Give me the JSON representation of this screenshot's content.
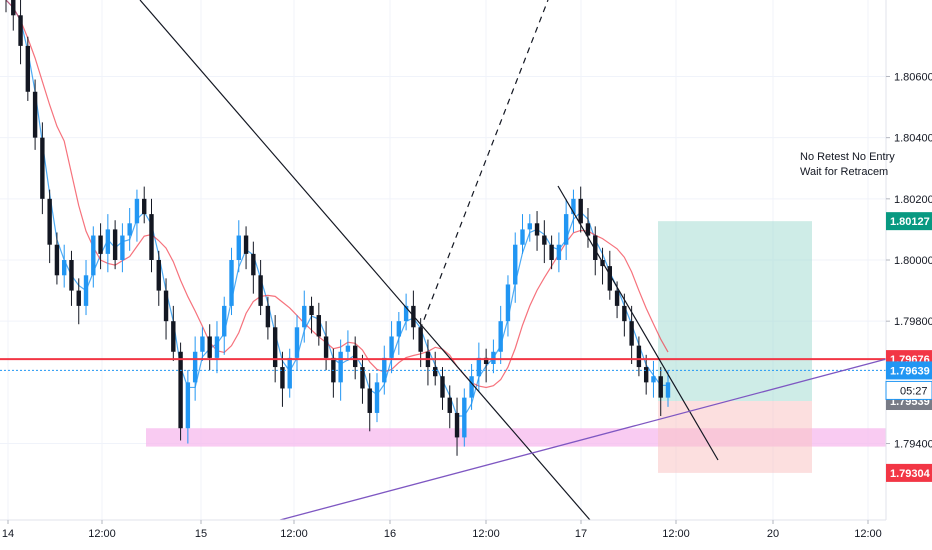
{
  "chart_data": {
    "type": "candlestick",
    "instrument_price_axis": {
      "ylim": [
        1.7915,
        1.8085
      ],
      "tick_values": [
        1.806,
        1.804,
        1.802,
        1.8,
        1.798,
        1.794
      ],
      "tick_labels": [
        "1.80600",
        "1.80400",
        "1.80200",
        "1.80000",
        "1.79800",
        "1.79400"
      ]
    },
    "time_axis": {
      "labels": [
        "14",
        "12:00",
        "15",
        "12:00",
        "16",
        "12:00",
        "17",
        "12:00",
        "20",
        "12:00"
      ]
    },
    "price_badges": [
      {
        "value": 1.80127,
        "label": "1.80127",
        "color": "#089981",
        "kind": "tp"
      },
      {
        "value": 1.79676,
        "label": "1.79676",
        "color": "#f23645",
        "kind": "level"
      },
      {
        "value": 1.79639,
        "label": "1.79639",
        "color": "#2196f3",
        "kind": "last"
      },
      {
        "value": 1.79539,
        "label": "1.79539",
        "color": "#787b86",
        "kind": "entry"
      },
      {
        "value": 1.79304,
        "label": "1.79304",
        "color": "#f23645",
        "kind": "sl"
      }
    ],
    "countdown": {
      "label": "05:27",
      "color": "#2196f3"
    },
    "annotation_lines": [
      "No Retest No Entry",
      "Wait for Retracem"
    ],
    "levels": {
      "horizontal_red": 1.79676,
      "blue_dotted": 1.79639,
      "support_zone": [
        1.7939,
        1.7945
      ]
    },
    "position": {
      "entry": 1.79539,
      "take_profit": 1.80127,
      "stop_loss": 1.79304
    },
    "ohlc_closes": [
      1.8085,
      1.808,
      1.807,
      1.8055,
      1.804,
      1.802,
      1.8005,
      1.7995,
      1.8,
      1.799,
      1.7985,
      1.7995,
      1.8008,
      1.8002,
      1.801,
      1.8,
      1.8008,
      1.8012,
      1.802,
      1.8015,
      1.8,
      1.799,
      1.798,
      1.797,
      1.7945,
      1.796,
      1.797,
      1.7975,
      1.7968,
      1.7975,
      1.7985,
      1.8,
      1.8008,
      1.8002,
      1.7995,
      1.7985,
      1.7978,
      1.7965,
      1.7958,
      1.7968,
      1.7978,
      1.7985,
      1.7982,
      1.7975,
      1.7968,
      1.796,
      1.797,
      1.7972,
      1.7965,
      1.7958,
      1.795,
      1.796,
      1.7968,
      1.7975,
      1.798,
      1.7985,
      1.7978,
      1.797,
      1.7965,
      1.7962,
      1.7955,
      1.795,
      1.7942,
      1.7955,
      1.7962,
      1.7968,
      1.7966,
      1.797,
      1.798,
      1.7992,
      1.8005,
      1.801,
      1.8012,
      1.8008,
      1.8005,
      1.8,
      1.8005,
      1.8015,
      1.802,
      1.8012,
      1.8008,
      1.8,
      1.7998,
      1.799,
      1.7985,
      1.798,
      1.7972,
      1.7965,
      1.796,
      1.7962,
      1.7955,
      1.796
    ]
  }
}
